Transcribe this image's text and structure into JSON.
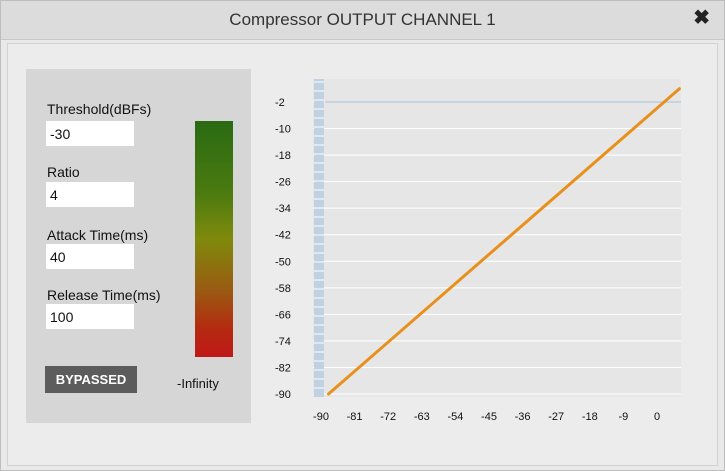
{
  "window": {
    "title": "Compressor OUTPUT CHANNEL 1",
    "close_glyph": "✖"
  },
  "controls": {
    "threshold": {
      "label": "Threshold(dBFs)",
      "value": "-30"
    },
    "ratio": {
      "label": "Ratio",
      "value": "4"
    },
    "attack": {
      "label": "Attack Time(ms)",
      "value": "40"
    },
    "release": {
      "label": "Release Time(ms)",
      "value": "100"
    },
    "bypass_label": "BYPASSED",
    "meter_label": "-Infinity"
  },
  "chart_data": {
    "type": "line",
    "x_ticks": [
      "-90",
      "-81",
      "-72",
      "-63",
      "-54",
      "-45",
      "-36",
      "-27",
      "-18",
      "-9",
      "0"
    ],
    "y_ticks": [
      "-2",
      "-10",
      "-18",
      "-26",
      "-34",
      "-42",
      "-50",
      "-58",
      "-66",
      "-74",
      "-82",
      "-90"
    ],
    "xlim": [
      -90,
      0
    ],
    "ylim": [
      -90,
      -2
    ],
    "series": [
      {
        "x": [
          -88,
          6
        ],
        "y": [
          -90,
          2
        ],
        "color": "#e8901c"
      }
    ],
    "reference_line_y": -2,
    "colors": {
      "curve": "#e8901c",
      "grid": "#ffffff",
      "axis_band": "#c0d2e2",
      "reference": "#a8c0d8"
    }
  }
}
